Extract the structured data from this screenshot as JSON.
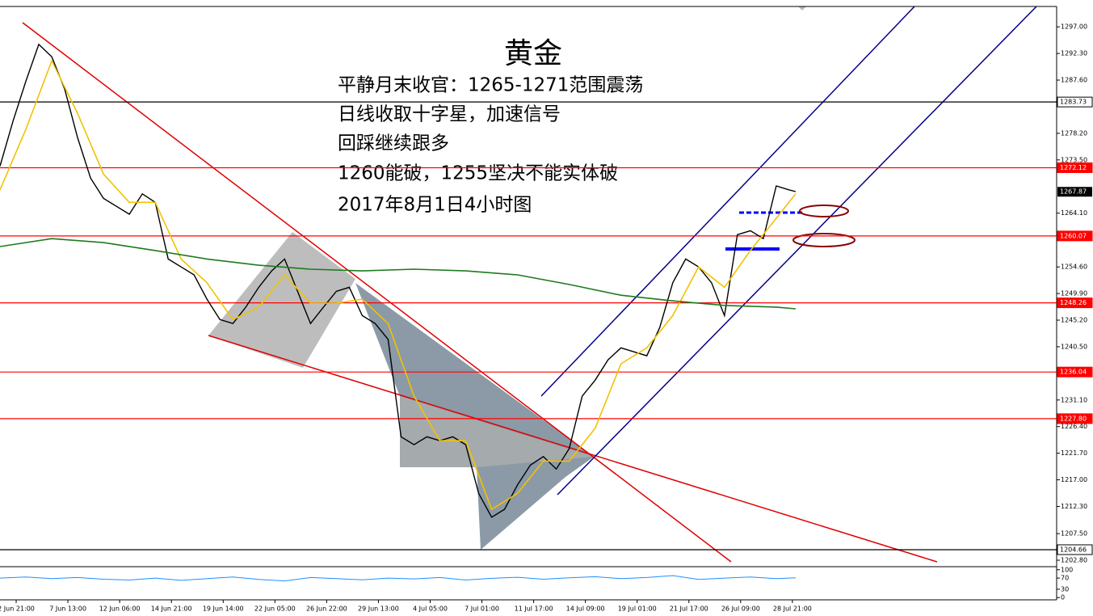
{
  "chart_data": [
    {
      "type": "line",
      "title": "黄金",
      "annotations": [
        "平静月末收官：1265-1271范围震荡",
        "日线收取十字星，加速信号",
        "回踩继续跟多",
        "1260能破，1255坚决不能实体破",
        "2017年8月1日4小时图"
      ],
      "xlim": [
        -5,
        321.7
      ],
      "ylim": [
        1201.8,
        1300.6
      ],
      "yticks": [
        {
          "value": 1297.0,
          "label": "1297.00"
        },
        {
          "value": 1292.3,
          "label": "1292.30"
        },
        {
          "value": 1287.6,
          "label": "1287.60"
        },
        {
          "value": 1278.2,
          "label": "1278.20"
        },
        {
          "value": 1273.5,
          "label": "1273.50"
        },
        {
          "value": 1264.1,
          "label": "1264.10"
        },
        {
          "value": 1254.6,
          "label": "1254.60"
        },
        {
          "value": 1249.9,
          "label": "1249.90"
        },
        {
          "value": 1245.2,
          "label": "1245.20"
        },
        {
          "value": 1240.5,
          "label": "1240.50"
        },
        {
          "value": 1231.1,
          "label": "1231.10"
        },
        {
          "value": 1226.4,
          "label": "1226.40"
        },
        {
          "value": 1221.7,
          "label": "1221.70"
        },
        {
          "value": 1217.0,
          "label": "1217.00"
        },
        {
          "value": 1212.3,
          "label": "1212.30"
        },
        {
          "value": 1207.5,
          "label": "1207.50"
        },
        {
          "value": 1202.8,
          "label": "1202.80"
        }
      ],
      "levels": [
        {
          "value": 1283.73,
          "label": "1283.73",
          "color": "#000000"
        },
        {
          "value": 1272.12,
          "label": "1272.12",
          "color": "#ff0000"
        },
        {
          "value": 1260.07,
          "label": "1260.07",
          "color": "#ff0000"
        },
        {
          "value": 1248.26,
          "label": "1248.26",
          "color": "#ff0000"
        },
        {
          "value": 1236.04,
          "label": "1236.04",
          "color": "#ff0000"
        },
        {
          "value": 1227.8,
          "label": "1227.80",
          "color": "#ff0000"
        },
        {
          "value": 1204.66,
          "label": "1204.66",
          "color": "#000000"
        }
      ],
      "last_price": {
        "value": 1267.87,
        "label": "1267.87"
      },
      "series": [
        {
          "color": "#000000",
          "width": 1.4,
          "x": [
            -5,
            -1,
            3,
            7,
            11,
            15,
            19,
            23,
            27,
            31,
            35,
            39,
            43,
            47,
            51,
            55,
            59,
            63,
            67,
            71,
            75,
            79,
            83,
            87,
            91,
            95,
            99,
            103,
            107,
            111,
            115,
            119,
            123,
            127,
            131,
            135,
            139,
            143,
            147,
            151,
            155,
            159,
            163,
            167,
            171,
            175,
            179,
            183,
            187,
            191,
            195,
            199,
            203,
            207,
            211,
            215,
            219,
            223,
            227,
            231,
            235,
            239,
            241
          ],
          "values": [
            1272.4,
            1280.3,
            1287.4,
            1293.9,
            1291.7,
            1286.0,
            1277.4,
            1270.3,
            1266.7,
            1265.3,
            1263.9,
            1267.5,
            1266.0,
            1256.0,
            1254.6,
            1253.2,
            1248.9,
            1245.3,
            1244.6,
            1247.5,
            1251.0,
            1253.9,
            1256.0,
            1250.3,
            1244.6,
            1247.5,
            1250.3,
            1251.0,
            1246.0,
            1244.6,
            1241.8,
            1224.6,
            1223.2,
            1224.6,
            1223.9,
            1224.6,
            1223.2,
            1214.6,
            1210.4,
            1211.8,
            1216.1,
            1219.6,
            1221.1,
            1218.9,
            1222.5,
            1231.8,
            1234.6,
            1238.2,
            1240.3,
            1239.6,
            1238.9,
            1243.9,
            1251.8,
            1256.0,
            1254.6,
            1251.8,
            1246.0,
            1260.3,
            1261.0,
            1259.6,
            1268.9,
            1268.2,
            1267.9
          ]
        },
        {
          "color": "#f2c200",
          "width": 1.6,
          "x": [
            -5,
            3,
            11,
            19,
            27,
            35,
            43,
            51,
            59,
            67,
            75,
            83,
            91,
            99,
            107,
            115,
            123,
            131,
            139,
            147,
            155,
            163,
            171,
            179,
            187,
            195,
            203,
            211,
            219,
            227,
            235,
            241
          ],
          "values": [
            1268.2,
            1278.9,
            1291.0,
            1281.7,
            1271.0,
            1266.0,
            1266.0,
            1256.0,
            1251.8,
            1245.3,
            1247.5,
            1253.2,
            1248.2,
            1248.2,
            1248.9,
            1244.6,
            1231.8,
            1223.9,
            1223.9,
            1211.8,
            1214.6,
            1220.3,
            1220.3,
            1226.1,
            1237.5,
            1240.3,
            1246.0,
            1254.6,
            1251.0,
            1257.5,
            1263.2,
            1267.5
          ]
        },
        {
          "color": "#1e7a1e",
          "width": 1.6,
          "x": [
            -5,
            11,
            27,
            43,
            59,
            75,
            91,
            107,
            123,
            139,
            155,
            171,
            187,
            203,
            219,
            235,
            241
          ],
          "values": [
            1258.2,
            1259.6,
            1258.9,
            1257.5,
            1256.0,
            1254.9,
            1254.2,
            1253.9,
            1254.2,
            1253.9,
            1253.2,
            1251.5,
            1249.6,
            1248.6,
            1247.8,
            1247.5,
            1247.2
          ]
        }
      ]
    },
    {
      "type": "line",
      "xlim": [
        -5,
        321.7
      ],
      "ylim": [
        -8,
        108
      ],
      "yticks": [
        100,
        70,
        30,
        0
      ],
      "xticks": [
        {
          "value": 0,
          "label": "2 Jun 21:00"
        },
        {
          "value": 16,
          "label": "7 Jun 13:00"
        },
        {
          "value": 32,
          "label": "12 Jun 06:00"
        },
        {
          "value": 48,
          "label": "14 Jun 21:00"
        },
        {
          "value": 64,
          "label": "19 Jun 14:00"
        },
        {
          "value": 80,
          "label": "22 Jun 05:00"
        },
        {
          "value": 96,
          "label": "26 Jun 22:00"
        },
        {
          "value": 112,
          "label": "29 Jun 13:00"
        },
        {
          "value": 128,
          "label": "4 Jul 05:00"
        },
        {
          "value": 144,
          "label": "7 Jul 01:00"
        },
        {
          "value": 160,
          "label": "11 Jul 17:00"
        },
        {
          "value": 176,
          "label": "14 Jul 09:00"
        },
        {
          "value": 192,
          "label": "19 Jul 01:00"
        },
        {
          "value": 208,
          "label": "21 Jul 17:00"
        },
        {
          "value": 224,
          "label": "26 Jul 09:00"
        },
        {
          "value": 240,
          "label": "28 Jul 21:00"
        }
      ],
      "series": [
        {
          "color": "#1e90ff",
          "width": 1,
          "x": [
            -5,
            3,
            11,
            19,
            27,
            35,
            43,
            51,
            59,
            67,
            75,
            83,
            91,
            99,
            107,
            115,
            123,
            131,
            139,
            147,
            155,
            163,
            171,
            179,
            187,
            195,
            203,
            211,
            219,
            227,
            235,
            241
          ],
          "values": [
            70,
            74,
            68,
            72,
            66,
            63,
            70,
            62,
            68,
            74,
            65,
            60,
            72,
            68,
            64,
            70,
            67,
            72,
            63,
            69,
            73,
            66,
            71,
            75,
            68,
            72,
            79,
            65,
            70,
            74,
            68,
            71
          ]
        }
      ]
    }
  ]
}
